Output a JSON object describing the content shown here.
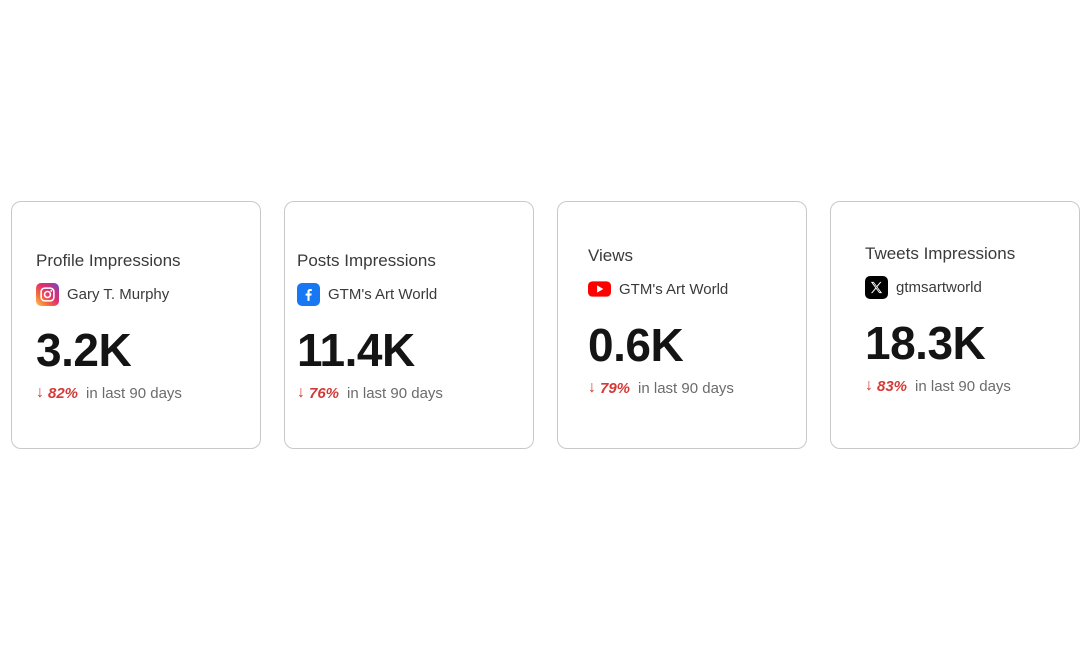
{
  "cards": [
    {
      "title": "Profile Impressions",
      "platform_icon": "instagram-icon",
      "account": "Gary T. Murphy",
      "value": "3.2K",
      "trend_arrow": "↓",
      "change": "82%",
      "period": "in last 90 days"
    },
    {
      "title": "Posts Impressions",
      "platform_icon": "facebook-icon",
      "account": "GTM's Art World",
      "value": "11.4K",
      "trend_arrow": "↓",
      "change": "76%",
      "period": "in last 90 days"
    },
    {
      "title": "Views",
      "platform_icon": "youtube-icon",
      "account": "GTM's Art World",
      "value": "0.6K",
      "trend_arrow": "↓",
      "change": "79%",
      "period": "in last 90 days"
    },
    {
      "title": "Tweets Impressions",
      "platform_icon": "x-icon",
      "account": "gtmsartworld",
      "value": "18.3K",
      "trend_arrow": "↓",
      "change": "83%",
      "period": "in last 90 days"
    }
  ],
  "colors": {
    "negative": "#d43a36",
    "instagram": "#d6249f",
    "facebook": "#1877f2",
    "youtube": "#ff0000",
    "x": "#000000"
  }
}
